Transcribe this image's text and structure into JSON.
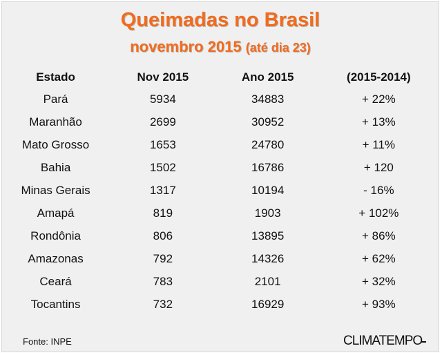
{
  "title": "Queimadas no  Brasil",
  "subtitle_main": "novembro 2015",
  "subtitle_note": "(até dia 23)",
  "chart_data": {
    "type": "table",
    "columns": [
      "Estado",
      "Nov  2015",
      "Ano 2015",
      "(2015-2014)"
    ],
    "rows": [
      [
        "Pará",
        "5934",
        "34883",
        "+ 22%"
      ],
      [
        "Maranhão",
        "2699",
        "30952",
        "+ 13%"
      ],
      [
        "Mato Grosso",
        "1653",
        "24780",
        "+ 11%"
      ],
      [
        "Bahia",
        "1502",
        "16786",
        "+ 120"
      ],
      [
        "Minas Gerais",
        "1317",
        "10194",
        "- 16%"
      ],
      [
        "Amapá",
        "819",
        "1903",
        "+ 102%"
      ],
      [
        "Rondônia",
        "806",
        "13895",
        "+ 86%"
      ],
      [
        "Amazonas",
        "792",
        "14326",
        "+ 62%"
      ],
      [
        "Ceará",
        "783",
        "2101",
        "+ 32%"
      ],
      [
        "Tocantins",
        "732",
        "16929",
        "+ 93%"
      ]
    ]
  },
  "source": "Fonte: INPE",
  "brand": "CLIMATEMPO",
  "colors": {
    "title": "#f26b1d",
    "background": "#f0f0f0"
  }
}
